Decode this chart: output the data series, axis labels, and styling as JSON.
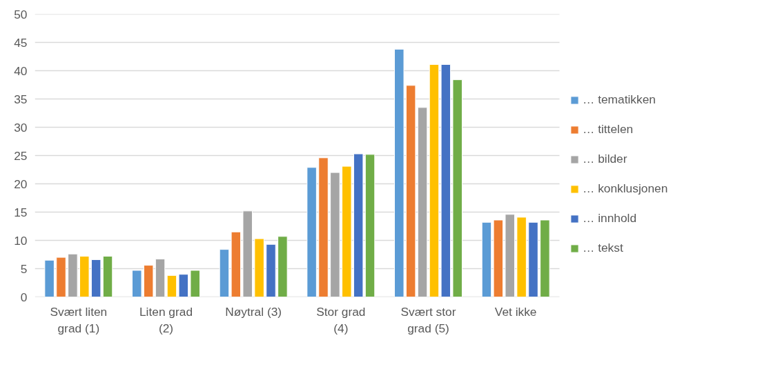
{
  "chart_data": {
    "type": "bar",
    "categories": [
      "Svært liten grad (1)",
      "Liten grad (2)",
      "Nøytral (3)",
      "Stor grad (4)",
      "Svært stor grad (5)",
      "Vet ikke"
    ],
    "series": [
      {
        "name": "… tematikken",
        "color": "#5b9bd5",
        "values": [
          6.5,
          4.7,
          8.4,
          22.9,
          43.8,
          13.2
        ]
      },
      {
        "name": "… tittelen",
        "color": "#ed7d31",
        "values": [
          7.0,
          5.6,
          11.5,
          24.6,
          37.4,
          13.6
        ]
      },
      {
        "name": "… bilder",
        "color": "#a5a5a5",
        "values": [
          7.6,
          6.7,
          15.2,
          22.0,
          33.5,
          14.6
        ]
      },
      {
        "name": "… konklusjonen",
        "color": "#ffc000",
        "values": [
          7.2,
          3.8,
          10.3,
          23.1,
          41.1,
          14.1
        ]
      },
      {
        "name": "… innhold",
        "color": "#4472c4",
        "values": [
          6.6,
          4.0,
          9.3,
          25.3,
          41.1,
          13.2
        ]
      },
      {
        "name": "… tekst",
        "color": "#70ad47",
        "values": [
          7.2,
          4.7,
          10.7,
          25.2,
          38.4,
          13.6
        ]
      }
    ],
    "ylim": [
      0,
      50
    ],
    "yticks": [
      0,
      5,
      10,
      15,
      20,
      25,
      30,
      35,
      40,
      45,
      50
    ],
    "grid": "y",
    "legend": "right"
  }
}
